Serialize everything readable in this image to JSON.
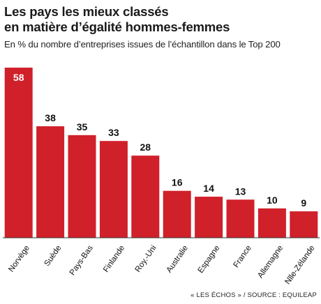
{
  "colors": {
    "bar": "#d0202a",
    "baseline": "#333333",
    "label_inside": "#ffffff",
    "label_outside": "#111111"
  },
  "chart_data": {
    "type": "bar",
    "title_lines": [
      "Les pays les mieux classés",
      "en matière d’égalité hommes-femmes"
    ],
    "subtitle": "En % du nombre d’entreprises issues de l’échantillon dans le Top 200",
    "categories": [
      "Norvège",
      "Suède",
      "Pays-Bas",
      "Finlande",
      "Roy.-Uni",
      "Australie",
      "Espagne",
      "France",
      "Allemagne",
      "Nlle-Zélande"
    ],
    "values": [
      58,
      38,
      35,
      33,
      28,
      16,
      14,
      13,
      10,
      9
    ],
    "ylim": [
      0,
      58
    ],
    "grid": false,
    "data_labels": true,
    "source": "« LES ÉCHOS » / SOURCE : EQUILEAP"
  }
}
